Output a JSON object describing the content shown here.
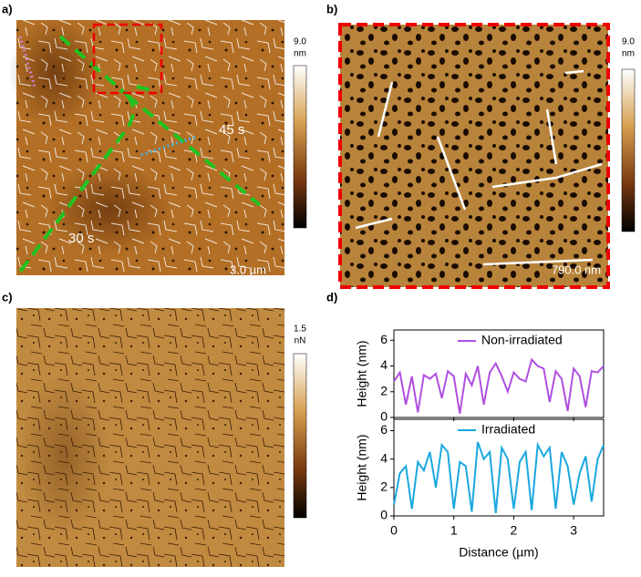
{
  "panels": [
    {
      "label": "a)",
      "colorbar": [
        "9.0",
        "nm"
      ],
      "annotations": [
        "45 s",
        "30 s"
      ],
      "scale_bar": "3.0 µm"
    },
    {
      "label": "b)",
      "colorbar": [
        "9.0",
        "nm"
      ],
      "scale_bar": "790.0 nm"
    },
    {
      "label": "c)",
      "colorbar": [
        "1.5",
        "nN"
      ]
    },
    {
      "label": "d)"
    }
  ],
  "chart_data": [
    {
      "type": "line",
      "ylabel": "Height (nm)",
      "x": [
        0,
        0.1,
        0.2,
        0.3,
        0.4,
        0.5,
        0.6,
        0.7,
        0.8,
        0.9,
        1.0,
        1.1,
        1.2,
        1.3,
        1.4,
        1.5,
        1.6,
        1.7,
        1.8,
        1.9,
        2.0,
        2.1,
        2.2,
        2.3,
        2.4,
        2.5,
        2.6,
        2.7,
        2.8,
        2.9,
        3.0,
        3.1,
        3.2,
        3.3,
        3.4,
        3.5
      ],
      "series": [
        {
          "name": "Non-irradiated",
          "color": "#b04fe0",
          "values": [
            2.8,
            3.5,
            1.0,
            3.2,
            0.4,
            3.3,
            3.0,
            3.4,
            1.5,
            3.6,
            3.2,
            0.3,
            3.4,
            2.5,
            4.0,
            1.0,
            3.5,
            4.2,
            3.2,
            2.0,
            3.5,
            3.0,
            2.8,
            4.5,
            4.0,
            3.8,
            1.2,
            3.6,
            3.0,
            0.5,
            3.8,
            3.2,
            0.8,
            3.6,
            3.5,
            4.0
          ]
        }
      ],
      "xlim": [
        0,
        3.5
      ],
      "xticks": [
        0,
        1,
        2,
        3
      ],
      "ylim": [
        0,
        6.8
      ],
      "yticks": [
        0,
        2,
        4,
        6
      ]
    },
    {
      "type": "line",
      "ylabel": "Height (nm)",
      "xlabel": "Distance (µm)",
      "x": [
        0,
        0.1,
        0.2,
        0.3,
        0.4,
        0.5,
        0.6,
        0.7,
        0.8,
        0.9,
        1.0,
        1.1,
        1.2,
        1.3,
        1.4,
        1.5,
        1.6,
        1.7,
        1.8,
        1.9,
        2.0,
        2.1,
        2.2,
        2.3,
        2.4,
        2.5,
        2.6,
        2.7,
        2.8,
        2.9,
        3.0,
        3.1,
        3.2,
        3.3,
        3.4,
        3.5
      ],
      "series": [
        {
          "name": "Irradiated",
          "color": "#1aa8e0",
          "values": [
            0.8,
            3.0,
            3.5,
            0.5,
            3.8,
            3.2,
            4.5,
            2.0,
            5.0,
            4.5,
            0.5,
            3.8,
            3.5,
            0.3,
            5.2,
            4.0,
            4.5,
            0.2,
            4.8,
            4.0,
            0.5,
            3.8,
            4.5,
            0.4,
            5.0,
            4.2,
            4.8,
            0.5,
            4.5,
            3.5,
            0.8,
            3.0,
            4.2,
            1.0,
            4.0,
            5.0
          ]
        }
      ],
      "xlim": [
        0,
        3.5
      ],
      "xticks": [
        0,
        1,
        2,
        3
      ],
      "ylim": [
        0,
        6.8
      ],
      "yticks": [
        0,
        2,
        4,
        6
      ]
    }
  ]
}
